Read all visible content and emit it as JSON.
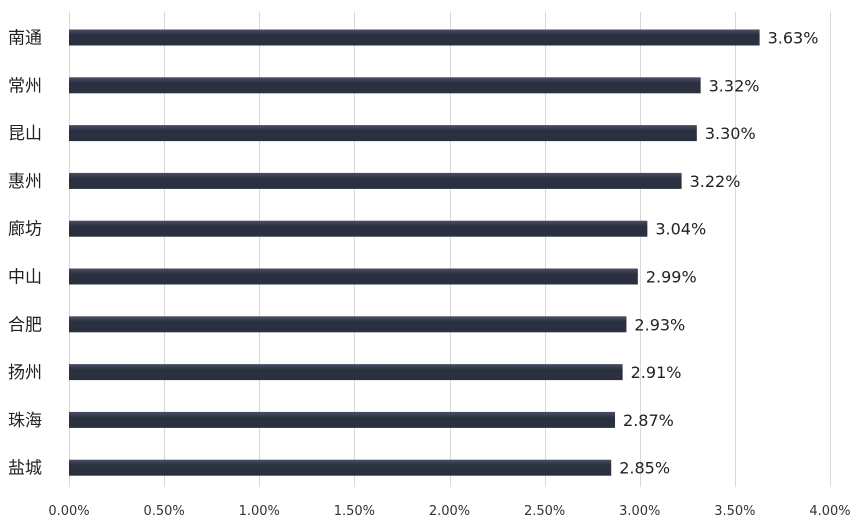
{
  "chart_data": {
    "type": "bar",
    "orientation": "horizontal",
    "title": "",
    "xlabel": "",
    "ylabel": "",
    "categories": [
      "南通",
      "常州",
      "昆山",
      "惠州",
      "廊坊",
      "中山",
      "合肥",
      "扬州",
      "珠海",
      "盐城"
    ],
    "values": [
      3.63,
      3.32,
      3.3,
      3.22,
      3.04,
      2.99,
      2.93,
      2.91,
      2.87,
      2.85
    ],
    "value_labels": [
      "3.63%",
      "3.32%",
      "3.30%",
      "3.22%",
      "3.04%",
      "2.99%",
      "2.93%",
      "2.91%",
      "2.87%",
      "2.85%"
    ],
    "xlim": [
      0,
      4.0
    ],
    "x_ticks": [
      0,
      0.5,
      1.0,
      1.5,
      2.0,
      2.5,
      3.0,
      3.5,
      4.0
    ],
    "x_tick_labels": [
      "0.00%",
      "0.50%",
      "1.00%",
      "1.50%",
      "2.00%",
      "2.50%",
      "3.00%",
      "3.50%",
      "4.00%"
    ],
    "grid": "vertical",
    "legend": "none",
    "bar_color": "#2b3040",
    "bar_highlight_color": "#4a5063"
  }
}
